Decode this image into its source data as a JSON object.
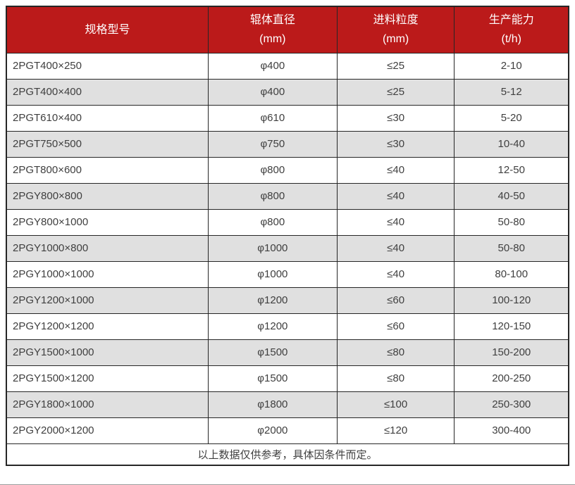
{
  "colors": {
    "header_bg": "#bb1a1a",
    "header_text": "#ffffff",
    "row_bg": "#ffffff",
    "row_alt_bg": "#e0e0e0",
    "border": "#262626",
    "cell_text": "#3f3f3f"
  },
  "chart_data": {
    "type": "table",
    "columns": [
      {
        "line1": "规格型号",
        "line2": ""
      },
      {
        "line1": "辊体直径",
        "line2": "(mm)"
      },
      {
        "line1": "进料粒度",
        "line2": "(mm)"
      },
      {
        "line1": "生产能力",
        "line2": "(t/h)"
      }
    ],
    "rows": [
      [
        "2PGT400×250",
        "φ400",
        "≤25",
        "2-10"
      ],
      [
        "2PGT400×400",
        "φ400",
        "≤25",
        "5-12"
      ],
      [
        "2PGT610×400",
        "φ610",
        "≤30",
        "5-20"
      ],
      [
        "2PGT750×500",
        "φ750",
        "≤30",
        "10-40"
      ],
      [
        "2PGT800×600",
        "φ800",
        "≤40",
        "12-50"
      ],
      [
        "2PGY800×800",
        "φ800",
        "≤40",
        "40-50"
      ],
      [
        "2PGY800×1000",
        "φ800",
        "≤40",
        "50-80"
      ],
      [
        "2PGY1000×800",
        "φ1000",
        "≤40",
        "50-80"
      ],
      [
        "2PGY1000×1000",
        "φ1000",
        "≤40",
        "80-100"
      ],
      [
        "2PGY1200×1000",
        "φ1200",
        "≤60",
        "100-120"
      ],
      [
        "2PGY1200×1200",
        "φ1200",
        "≤60",
        "120-150"
      ],
      [
        "2PGY1500×1000",
        "φ1500",
        "≤80",
        "150-200"
      ],
      [
        "2PGY1500×1200",
        "φ1500",
        "≤80",
        "200-250"
      ],
      [
        "2PGY1800×1000",
        "φ1800",
        "≤100",
        "250-300"
      ],
      [
        "2PGY2000×1200",
        "φ2000",
        "≤120",
        "300-400"
      ]
    ],
    "footer_note": "以上数据仅供参考，具体因条件而定。"
  }
}
